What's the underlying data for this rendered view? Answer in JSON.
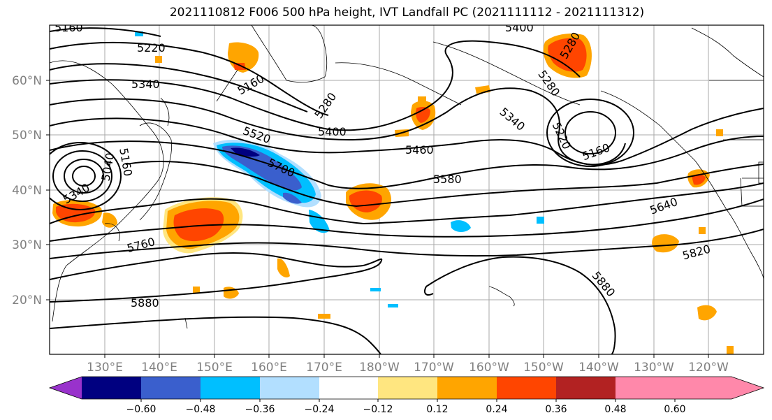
{
  "title": "2021110812 F006 500 hPa height, IVT Landfall PC (2021111112 - 2021111312)",
  "latitude_labels": [
    "60°N",
    "50°N",
    "40°N",
    "30°N",
    "20°N"
  ],
  "longitude_labels": [
    "130°E",
    "140°E",
    "150°E",
    "160°E",
    "170°E",
    "180°W",
    "170°W",
    "160°W",
    "150°W",
    "140°W",
    "130°W",
    "120°W"
  ],
  "contour_labels": [
    "5160",
    "5220",
    "5340",
    "5160",
    "5280",
    "5400",
    "5280",
    "5400",
    "5460",
    "5520",
    "5700",
    "5580",
    "5340",
    "5220",
    "5160",
    "5280",
    "5640",
    "5760",
    "5820",
    "5880",
    "5880",
    "5160",
    "5040",
    "5340"
  ],
  "colorbar": {
    "tick_labels": [
      "−0.60",
      "−0.48",
      "−0.36",
      "−0.24",
      "−0.12",
      "0.12",
      "0.24",
      "0.36",
      "0.48",
      "0.60"
    ],
    "colors": [
      "#9932cc",
      "#000080",
      "#3a5fcd",
      "#00bfff",
      "#b2dfff",
      "#ffffff",
      "#ffe680",
      "#ffa500",
      "#ff4500",
      "#b22222",
      "#ff88aa"
    ]
  },
  "colors": {
    "grid": "#a9a9a9",
    "contour": "#000000",
    "pc_positive_low": "#ffe680",
    "pc_positive_mid": "#ffa500",
    "pc_positive_high": "#ff4500",
    "pc_negative_low": "#b2dfff",
    "pc_negative_mid": "#00bfff",
    "pc_negative_high": "#3a5fcd",
    "pc_negative_max": "#000080"
  }
}
